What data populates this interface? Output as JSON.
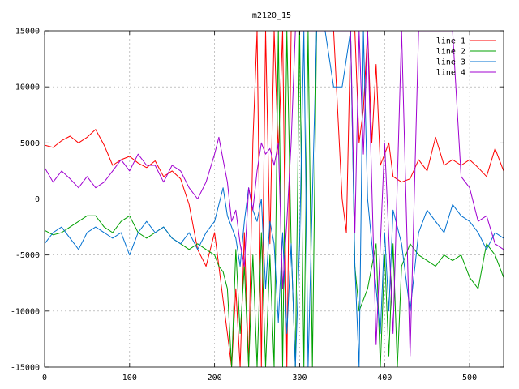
{
  "chart_data": {
    "type": "line",
    "title": "m2120_15",
    "xlim": [
      0,
      540
    ],
    "ylim": [
      -15000,
      15000
    ],
    "xticks": [
      0,
      100,
      200,
      300,
      400,
      500
    ],
    "yticks": [
      -15000,
      -10000,
      -5000,
      0,
      5000,
      10000,
      15000
    ],
    "grid": true,
    "legend_position": "top-right",
    "series": [
      {
        "name": "line 1",
        "color": "#ff0000",
        "x": [
          0,
          10,
          20,
          30,
          40,
          50,
          60,
          70,
          80,
          90,
          100,
          110,
          120,
          130,
          140,
          150,
          160,
          170,
          180,
          190,
          200,
          205,
          210,
          215,
          220,
          225,
          230,
          235,
          240,
          245,
          250,
          255,
          260,
          265,
          270,
          275,
          280,
          285,
          290,
          295,
          300,
          305,
          310,
          320,
          330,
          340,
          350,
          355,
          360,
          365,
          370,
          375,
          380,
          385,
          390,
          395,
          400,
          405,
          410,
          420,
          430,
          440,
          450,
          460,
          470,
          480,
          490,
          500,
          510,
          520,
          530,
          540
        ],
        "y": [
          4800,
          4600,
          5200,
          5600,
          5000,
          5500,
          6200,
          4800,
          3000,
          3500,
          3800,
          3200,
          2800,
          3400,
          2000,
          2500,
          1800,
          -500,
          -4500,
          -6000,
          -3000,
          -6000,
          -9000,
          -12000,
          -15000,
          -8000,
          -15000,
          -3000,
          -15000,
          5000,
          15000,
          -15000,
          15000,
          -4000,
          15000,
          4000,
          15000,
          -15000,
          15000,
          15000,
          15000,
          15000,
          15000,
          15000,
          15000,
          15000,
          0,
          -3000,
          15000,
          15000,
          5000,
          8000,
          15000,
          5000,
          12000,
          3000,
          4000,
          5000,
          2000,
          1500,
          1800,
          3500,
          2500,
          5500,
          3000,
          3500,
          3000,
          3500,
          2800,
          2000,
          4500,
          2500
        ]
      },
      {
        "name": "line 2",
        "color": "#00a000",
        "x": [
          0,
          10,
          20,
          30,
          40,
          50,
          60,
          70,
          80,
          90,
          100,
          110,
          120,
          130,
          140,
          150,
          160,
          170,
          180,
          190,
          200,
          205,
          210,
          215,
          220,
          225,
          230,
          235,
          240,
          245,
          250,
          255,
          260,
          265,
          270,
          275,
          280,
          285,
          290,
          295,
          300,
          305,
          310,
          315,
          320,
          330,
          340,
          350,
          360,
          365,
          370,
          380,
          390,
          395,
          400,
          405,
          410,
          415,
          420,
          430,
          440,
          450,
          460,
          470,
          480,
          490,
          500,
          510,
          520,
          530,
          540
        ],
        "y": [
          -2800,
          -3200,
          -3000,
          -2500,
          -2000,
          -1500,
          -1500,
          -2500,
          -3000,
          -2000,
          -1500,
          -3000,
          -3500,
          -3000,
          -2500,
          -3500,
          -4000,
          -4500,
          -4000,
          -4500,
          -5000,
          -6000,
          -6500,
          -8000,
          -15000,
          -4500,
          -12000,
          -6000,
          -15000,
          -5000,
          -15000,
          -3000,
          -15000,
          -5000,
          -15000,
          15000,
          -15000,
          15000,
          -4000,
          -15000,
          15000,
          -15000,
          15000,
          -15000,
          15000,
          15000,
          15000,
          15000,
          15000,
          -6000,
          -10000,
          -8000,
          -4000,
          -15000,
          -5000,
          -14000,
          -4000,
          -15000,
          -6000,
          -4000,
          -5000,
          -5500,
          -6000,
          -5000,
          -5500,
          -5000,
          -7000,
          -8000,
          -4000,
          -5000,
          -7000
        ]
      },
      {
        "name": "line 3",
        "color": "#0070d0",
        "x": [
          0,
          10,
          20,
          30,
          40,
          50,
          60,
          70,
          80,
          90,
          100,
          110,
          120,
          130,
          140,
          150,
          160,
          170,
          180,
          190,
          200,
          205,
          210,
          215,
          220,
          225,
          230,
          235,
          240,
          245,
          250,
          255,
          260,
          265,
          270,
          275,
          280,
          285,
          290,
          295,
          300,
          305,
          310,
          320,
          330,
          340,
          350,
          360,
          365,
          370,
          375,
          380,
          390,
          395,
          400,
          405,
          410,
          420,
          430,
          440,
          450,
          460,
          470,
          480,
          490,
          500,
          510,
          520,
          530,
          540
        ],
        "y": [
          -4000,
          -3000,
          -2500,
          -3500,
          -4500,
          -3000,
          -2500,
          -3000,
          -3500,
          -3000,
          -5000,
          -3000,
          -2000,
          -3000,
          -2500,
          -3500,
          -4000,
          -3000,
          -4500,
          -3000,
          -2000,
          -500,
          1000,
          -1500,
          -2500,
          -3500,
          -6000,
          -2000,
          1000,
          -1000,
          -2000,
          0,
          -8000,
          -2000,
          -4000,
          -11000,
          -3000,
          -12000,
          -4000,
          -15000,
          -4000,
          15000,
          -15000,
          15000,
          15000,
          10000,
          10000,
          15000,
          -6000,
          -15000,
          15000,
          0,
          -8000,
          -12000,
          -3000,
          -10000,
          -1000,
          -4000,
          -10000,
          -3000,
          -1000,
          -2000,
          -3000,
          -500,
          -1500,
          -2000,
          -3000,
          -4500,
          -3000,
          -3500
        ]
      },
      {
        "name": "line 4",
        "color": "#a000d0",
        "x": [
          0,
          10,
          20,
          30,
          40,
          50,
          60,
          70,
          80,
          90,
          100,
          110,
          120,
          130,
          140,
          150,
          160,
          170,
          180,
          190,
          200,
          205,
          210,
          215,
          220,
          225,
          230,
          235,
          240,
          245,
          250,
          255,
          260,
          265,
          270,
          275,
          280,
          285,
          290,
          295,
          300,
          305,
          310,
          320,
          330,
          340,
          350,
          360,
          365,
          370,
          375,
          380,
          390,
          400,
          410,
          420,
          430,
          440,
          450,
          460,
          470,
          480,
          490,
          500,
          510,
          520,
          530,
          540
        ],
        "y": [
          2800,
          1500,
          2500,
          1800,
          1000,
          2000,
          1000,
          1500,
          2500,
          3500,
          2500,
          4000,
          3000,
          3000,
          1500,
          3000,
          2500,
          1000,
          0,
          1500,
          4000,
          5500,
          3500,
          1500,
          -2000,
          -1000,
          -4000,
          -6000,
          1000,
          -1000,
          2500,
          5000,
          4000,
          4500,
          3000,
          5000,
          -8000,
          -2000,
          5000,
          15000,
          15000,
          15000,
          15000,
          15000,
          15000,
          15000,
          15000,
          15000,
          -3000,
          15000,
          4000,
          15000,
          -13000,
          5000,
          -12000,
          15000,
          -14000,
          15000,
          15000,
          15000,
          15000,
          15000,
          2000,
          1000,
          -2000,
          -1500,
          -4000,
          -4500
        ]
      }
    ]
  }
}
